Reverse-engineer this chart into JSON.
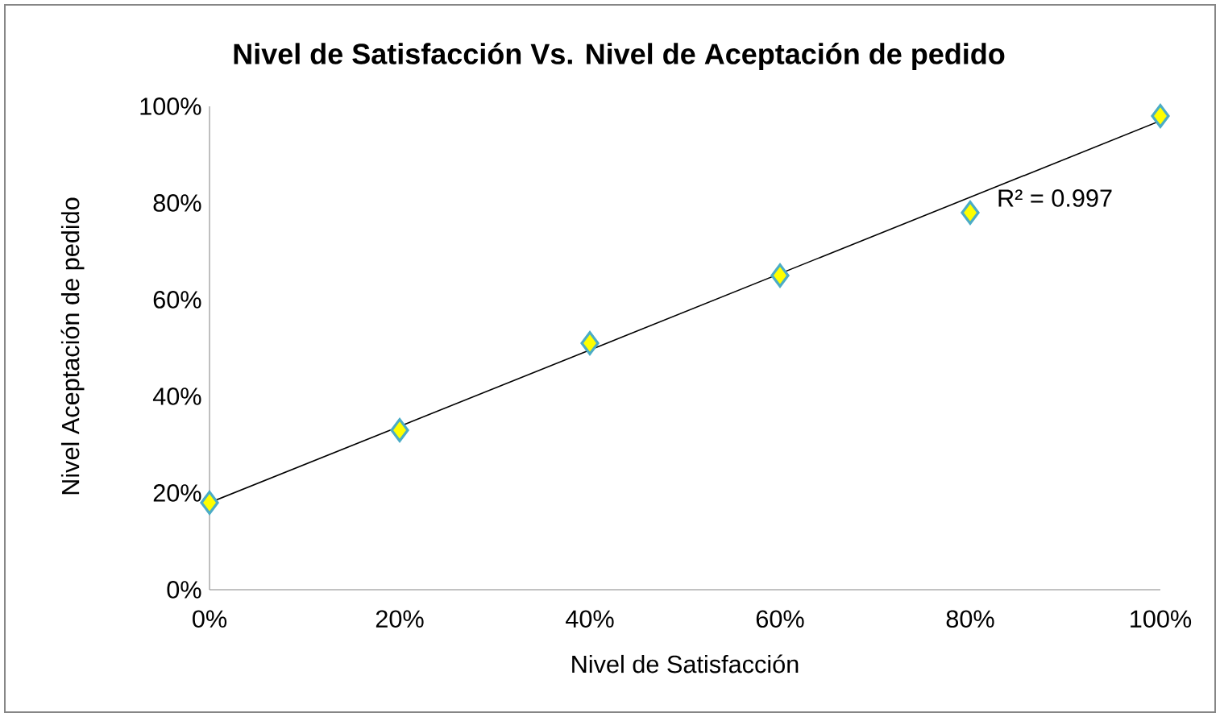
{
  "chart_data": {
    "type": "scatter",
    "title": "Nivel de Satisfacción Vs. Nivel de Aceptación de pedido",
    "xlabel": "Nivel de Satisfacción",
    "ylabel": "Nivel Aceptación de pedido",
    "xlim": [
      0,
      100
    ],
    "ylim": [
      0,
      100
    ],
    "xticks": [
      {
        "value": 0,
        "label": "0%"
      },
      {
        "value": 20,
        "label": "20%"
      },
      {
        "value": 40,
        "label": "40%"
      },
      {
        "value": 60,
        "label": "60%"
      },
      {
        "value": 80,
        "label": "80%"
      },
      {
        "value": 100,
        "label": "100%"
      }
    ],
    "yticks": [
      {
        "value": 0,
        "label": "0%"
      },
      {
        "value": 20,
        "label": "20%"
      },
      {
        "value": 40,
        "label": "40%"
      },
      {
        "value": 60,
        "label": "60%"
      },
      {
        "value": 80,
        "label": "80%"
      },
      {
        "value": 100,
        "label": "100%"
      }
    ],
    "series": [
      {
        "color": "#ffff00",
        "x": [
          0,
          20,
          40,
          60,
          80,
          100
        ],
        "values": [
          18,
          33,
          51,
          65,
          78,
          98
        ],
        "marker": "diamond"
      },
      {
        "type": "line",
        "color": "#000000",
        "x": [
          0,
          100
        ],
        "values": [
          18,
          97
        ],
        "marker": "none"
      }
    ],
    "annotations": [
      "R² = 0.997"
    ]
  }
}
